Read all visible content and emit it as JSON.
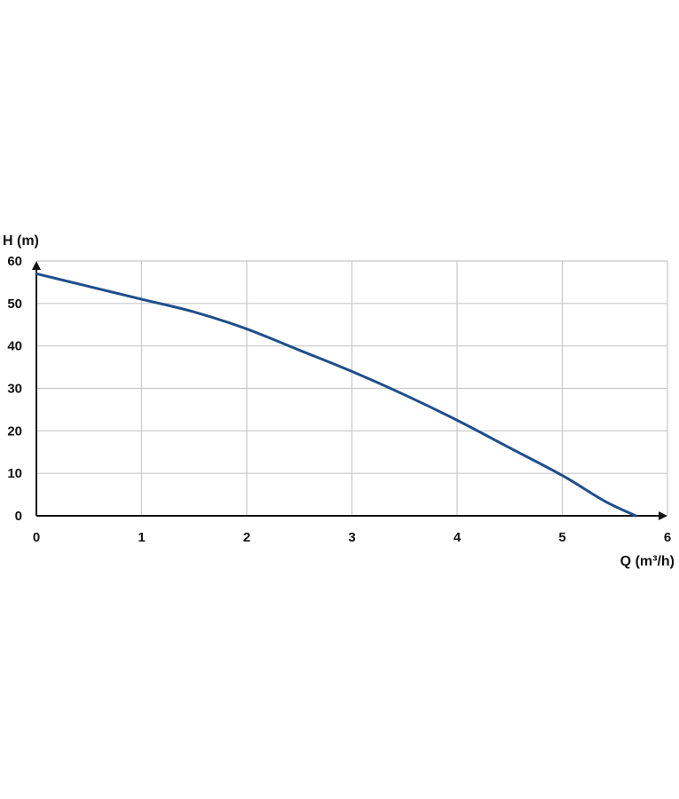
{
  "chart_data": {
    "type": "line",
    "xlabel": "Q (m³/h)",
    "ylabel": "H (m)",
    "xlim": [
      0,
      6
    ],
    "ylim": [
      0,
      60
    ],
    "x_ticks": [
      "0",
      "1",
      "2",
      "3",
      "4",
      "5",
      "6"
    ],
    "y_ticks": [
      "0",
      "10",
      "20",
      "30",
      "40",
      "50",
      "60"
    ],
    "grid": true,
    "colors": {
      "series": "#1f4e8c",
      "axis": "#111111",
      "grid": "#c8c8c8"
    },
    "series": [
      {
        "x": [
          0,
          0.5,
          1,
          1.5,
          2,
          2.5,
          3,
          3.5,
          4,
          4.5,
          5,
          5.4,
          5.7
        ],
        "y": [
          57,
          54,
          51,
          48,
          44,
          39,
          34,
          28.5,
          22.5,
          16,
          9.5,
          3.5,
          0
        ]
      }
    ]
  }
}
